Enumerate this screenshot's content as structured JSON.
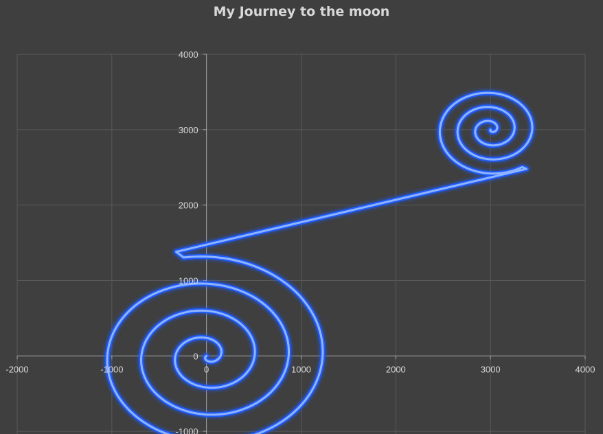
{
  "colors": {
    "background": "#3f3f3f",
    "grid": "#595959",
    "axis": "#a6a6a6",
    "text": "#d9d9d9",
    "line_outer": "#1f5cff",
    "line_inner": "#8fb4ff"
  },
  "chart_data": {
    "type": "scatter",
    "title": "My Journey to the moon",
    "xlabel": "",
    "ylabel": "",
    "xlim": [
      -2000,
      4000
    ],
    "ylim": [
      -1500,
      4000
    ],
    "x_ticks": [
      "-2000",
      "-1000",
      "0",
      "1000",
      "2000",
      "3000",
      "4000"
    ],
    "y_ticks": [
      "-1000",
      "0",
      "1000",
      "2000",
      "3000",
      "4000"
    ],
    "grid": true,
    "legend": "none",
    "series": [
      {
        "style": "smooth line with glow",
        "segments": [
          {
            "shape": "spiral",
            "center": [
              0,
              0
            ],
            "turns": 3.7,
            "start_radius": 0,
            "end_radius": 1330,
            "end_point": [
              -320,
              1380
            ]
          },
          {
            "shape": "straight",
            "from": [
              -320,
              1380
            ],
            "to": [
              3380,
              2480
            ]
          },
          {
            "shape": "spiral",
            "center": [
              3000,
              3000
            ],
            "turns": 3.2,
            "start_radius": 0,
            "end_radius": 600,
            "end_point": [
              3380,
              2480
            ]
          }
        ]
      }
    ]
  }
}
